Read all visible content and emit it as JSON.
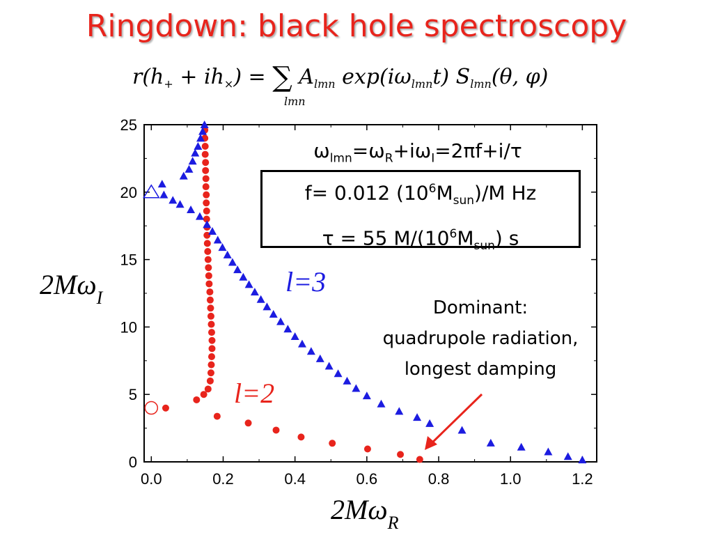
{
  "slide": {
    "title": "Ringdown: black hole spectroscopy"
  },
  "formula": {
    "lhs_r": "r",
    "lhs_paren": "(h",
    "plus_sub": "+",
    "mid": " + ih",
    "times_sub": "×",
    "close": ") = ",
    "sum": "∑",
    "A": " A",
    "lmn1": "lmn",
    "exp": " exp(iω",
    "lmn2": "lmn",
    "t": "t) S",
    "lmn3": "lmn",
    "args": "(θ, φ)",
    "under_sum": "lmn"
  },
  "omega_relation": {
    "w1": "ω",
    "s1": "lmn",
    "eq1": "=ω",
    "s2": "R",
    "plus": "+iω",
    "s3": "I",
    "rest": "=2πf+i/τ"
  },
  "box": {
    "f_pre": "f= 0.012 (10",
    "f_exp": "6",
    "f_m": "M",
    "f_sun": "sun",
    "f_post": ")/M Hz",
    "tau_pre": "τ = 55 M/(10",
    "tau_exp": "6",
    "tau_m": "M",
    "tau_sun": "sun",
    "tau_post": ") s"
  },
  "annotation": {
    "line1": "Dominant:",
    "line2": "quadrupole radiation,",
    "line3": "longest damping"
  },
  "chart_data": {
    "type": "scatter",
    "xlim": [
      -0.02,
      1.24
    ],
    "ylim": [
      0,
      25
    ],
    "xticks": [
      "0.0",
      "0.2",
      "0.4",
      "0.6",
      "0.8",
      "1.0",
      "1.2"
    ],
    "yticks": [
      "0",
      "5",
      "10",
      "15",
      "20",
      "25"
    ],
    "xlabel_main": "2Mω",
    "xlabel_sub": "R",
    "ylabel_main": "2Mω",
    "ylabel_sub": "I",
    "colors": {
      "l2": "#e8241c",
      "l3": "#1c1ce0",
      "axis": "#000000"
    },
    "series": [
      {
        "name": "l=2",
        "marker": "circle",
        "points": [
          [
            0.74734,
            0.17781
          ],
          [
            0.69342,
            0.54743
          ],
          [
            0.60211,
            0.95655
          ],
          [
            0.50379,
            1.37898
          ],
          [
            0.41703,
            1.84104
          ],
          [
            0.34737,
            2.35326
          ],
          [
            0.26987,
            2.87722
          ],
          [
            0.18326,
            3.37936
          ],
          [
            0.04,
            3.99
          ],
          [
            0.126,
            4.6
          ],
          [
            0.146,
            5.0
          ],
          [
            0.158,
            5.4
          ],
          [
            0.164,
            6.0
          ],
          [
            0.166,
            6.6
          ],
          [
            0.167,
            7.2
          ],
          [
            0.168,
            7.8
          ],
          [
            0.169,
            8.4
          ],
          [
            0.169,
            9.0
          ],
          [
            0.168,
            9.6
          ],
          [
            0.167,
            10.2
          ],
          [
            0.166,
            10.8
          ],
          [
            0.165,
            11.4
          ],
          [
            0.164,
            12.0
          ],
          [
            0.163,
            12.6
          ],
          [
            0.161,
            13.2
          ],
          [
            0.16,
            13.8
          ],
          [
            0.159,
            14.4
          ],
          [
            0.158,
            15.0
          ],
          [
            0.157,
            15.6
          ],
          [
            0.156,
            16.2
          ],
          [
            0.155,
            16.8
          ],
          [
            0.155,
            17.4
          ],
          [
            0.154,
            18.0
          ],
          [
            0.154,
            18.6
          ],
          [
            0.153,
            19.2
          ],
          [
            0.153,
            19.8
          ],
          [
            0.152,
            20.4
          ],
          [
            0.152,
            21.0
          ],
          [
            0.151,
            21.6
          ],
          [
            0.151,
            22.2
          ],
          [
            0.15,
            22.8
          ],
          [
            0.15,
            23.4
          ],
          [
            0.149,
            24.0
          ],
          [
            0.149,
            24.6
          ]
        ],
        "hollow_point": [
          0.0,
          4.0
        ]
      },
      {
        "name": "l=3",
        "marker": "triangle",
        "points": [
          [
            1.2,
            0.15
          ],
          [
            1.16,
            0.4
          ],
          [
            1.105,
            0.75
          ],
          [
            1.03,
            1.1
          ],
          [
            0.945,
            1.4
          ],
          [
            0.865,
            2.35
          ],
          [
            0.775,
            2.85
          ],
          [
            0.74,
            3.3
          ],
          [
            0.69,
            3.75
          ],
          [
            0.64,
            4.3
          ],
          [
            0.6,
            4.9
          ],
          [
            0.57,
            5.45
          ],
          [
            0.545,
            6.0
          ],
          [
            0.52,
            6.55
          ],
          [
            0.495,
            7.1
          ],
          [
            0.47,
            7.65
          ],
          [
            0.445,
            8.2
          ],
          [
            0.42,
            8.75
          ],
          [
            0.4,
            9.3
          ],
          [
            0.38,
            9.85
          ],
          [
            0.36,
            10.4
          ],
          [
            0.34,
            10.95
          ],
          [
            0.322,
            11.5
          ],
          [
            0.305,
            12.05
          ],
          [
            0.288,
            12.6
          ],
          [
            0.272,
            13.15
          ],
          [
            0.256,
            13.7
          ],
          [
            0.24,
            14.25
          ],
          [
            0.226,
            14.8
          ],
          [
            0.212,
            15.35
          ],
          [
            0.198,
            15.9
          ],
          [
            0.185,
            16.45
          ],
          [
            0.17,
            17.1
          ],
          [
            0.155,
            17.6
          ],
          [
            0.135,
            18.2
          ],
          [
            0.11,
            18.7
          ],
          [
            0.08,
            19.1
          ],
          [
            0.06,
            19.4
          ],
          [
            0.035,
            19.8
          ],
          [
            0.03,
            20.6
          ],
          [
            0.09,
            21.2
          ],
          [
            0.105,
            21.7
          ],
          [
            0.115,
            22.3
          ],
          [
            0.122,
            22.9
          ],
          [
            0.13,
            23.4
          ],
          [
            0.137,
            24.0
          ],
          [
            0.143,
            24.5
          ],
          [
            0.148,
            25.0
          ]
        ],
        "hollow_point": [
          0.0,
          20.0
        ]
      }
    ],
    "series_labels": {
      "l2": "l=2",
      "l3": "l=3"
    }
  }
}
